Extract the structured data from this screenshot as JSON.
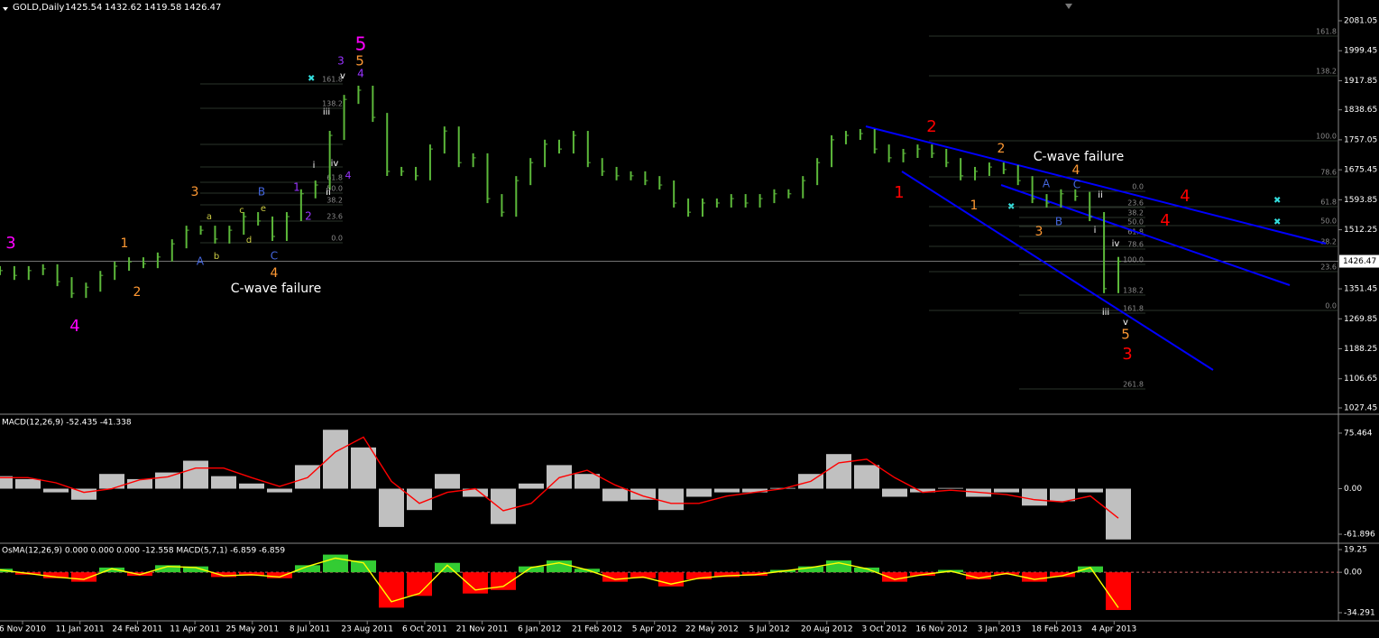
{
  "chart_data": {
    "type": "ohlc",
    "symbol": "GOLD,Daily",
    "ohlc": [
      1425.54,
      1432.62,
      1419.58,
      1426.47
    ],
    "color": "#5cb83a",
    "values": [
      1401,
      1388,
      1401,
      1406,
      1371,
      1339,
      1356,
      1388,
      1413,
      1425,
      1420,
      1438,
      1474,
      1511,
      1511,
      1487,
      1511,
      1548,
      1536,
      1494,
      1548,
      1610,
      1634,
      1769,
      1867,
      1892,
      1818,
      1671,
      1671,
      1659,
      1732,
      1781,
      1695,
      1708,
      1597,
      1560,
      1646,
      1695,
      1745,
      1732,
      1769,
      1695,
      1671,
      1659,
      1659,
      1646,
      1634,
      1585,
      1560,
      1585,
      1585,
      1597,
      1585,
      1597,
      1610,
      1610,
      1646,
      1695,
      1757,
      1769,
      1774,
      1732,
      1708,
      1720,
      1732,
      1720,
      1695,
      1659,
      1671,
      1683,
      1676,
      1646,
      1597,
      1585,
      1610,
      1603,
      1548,
      1352,
      1426
    ],
    "ylim": [
      1012.7,
      2132.6
    ],
    "yticks": [
      2081.05,
      1999.45,
      1917.85,
      1838.65,
      1757.05,
      1675.45,
      1593.85,
      1512.25,
      1351.45,
      1269.85,
      1188.25,
      1106.65,
      1027.45
    ],
    "date_labels": [
      "6 Nov 2010",
      "11 Jan 2011",
      "24 Feb 2011",
      "11 Apr 2011",
      "25 May 2011",
      "8 Jul 2011",
      "23 Aug 2011",
      "6 Oct 2011",
      "21 Nov 2011",
      "6 Jan 2012",
      "21 Feb 2012",
      "5 Apr 2012",
      "22 May 2012",
      "5 Jul 2012",
      "20 Aug 2012",
      "3 Oct 2012",
      "16 Nov 2012",
      "3 Jan 2013",
      "18 Feb 2013",
      "4 Apr 2013"
    ],
    "trendline_color": "#0000ff",
    "annotations": [
      {
        "text": "3",
        "color": "#ff00ff"
      },
      {
        "text": "4",
        "color": "#ff00ff"
      },
      {
        "text": "5",
        "color": "#ff00ff"
      },
      {
        "text": "3",
        "color": "#9933ff"
      },
      {
        "text": "5",
        "color": "#ff9933"
      },
      {
        "text": "4",
        "color": "#9933ff"
      },
      {
        "text": "1",
        "color": "#ff9933"
      },
      {
        "text": "2",
        "color": "#ff9933"
      },
      {
        "text": "3",
        "color": "#ff9933"
      },
      {
        "text": "4",
        "color": "#ff9933"
      },
      {
        "text": "1",
        "color": "#ff9933"
      },
      {
        "text": "2",
        "color": "#ff9933"
      },
      {
        "text": "3",
        "color": "#ff9933"
      },
      {
        "text": "4",
        "color": "#ff9933"
      },
      {
        "text": "5",
        "color": "#ff9933"
      },
      {
        "text": "C-wave failure",
        "color": "#ffffff"
      },
      {
        "text": "C-wave failure",
        "color": "#ffffff"
      },
      {
        "text": "A",
        "color": "#4466dd"
      },
      {
        "text": "B",
        "color": "#4466dd"
      },
      {
        "text": "C",
        "color": "#4466dd"
      },
      {
        "text": "A",
        "color": "#4466dd"
      },
      {
        "text": "B",
        "color": "#4466dd"
      },
      {
        "text": "C",
        "color": "#4466dd"
      },
      {
        "text": "a",
        "color": "#cccc44"
      },
      {
        "text": "b",
        "color": "#cccc44"
      },
      {
        "text": "c",
        "color": "#cccc44"
      },
      {
        "text": "d",
        "color": "#cccc44"
      },
      {
        "text": "e",
        "color": "#cccc44"
      },
      {
        "text": "1",
        "color": "#9933ff"
      },
      {
        "text": "2",
        "color": "#9933ff"
      },
      {
        "text": "4",
        "color": "#9933ff"
      },
      {
        "text": "v",
        "color": "#ffffff"
      },
      {
        "text": "iii",
        "color": "#ffffff"
      },
      {
        "text": "i",
        "color": "#ffffff"
      },
      {
        "text": "iv",
        "color": "#ffffff"
      },
      {
        "text": "ii",
        "color": "#ffffff"
      },
      {
        "text": "ii",
        "color": "#ffffff"
      },
      {
        "text": "i",
        "color": "#ffffff"
      },
      {
        "text": "iv",
        "color": "#ffffff"
      },
      {
        "text": "iii",
        "color": "#ffffff"
      },
      {
        "text": "v",
        "color": "#ffffff"
      },
      {
        "text": "1",
        "color": "#ff0000"
      },
      {
        "text": "2",
        "color": "#ff0000"
      },
      {
        "text": "3",
        "color": "#ff0000"
      },
      {
        "text": "4",
        "color": "#ff0000"
      },
      {
        "text": "4",
        "color": "#ff0000"
      }
    ],
    "fibs": [
      {
        "labels": [
          "161.8",
          "138.2",
          "100.0",
          "78.6",
          "61.8",
          "50.0",
          "38.2",
          "23.6",
          "0.0"
        ]
      },
      {
        "labels": [
          "161.8",
          "138.2",
          "61.8",
          "50.0",
          "38.2",
          "23.6",
          "0.0"
        ]
      },
      {
        "labels": [
          "0.0",
          "23.6",
          "38.2",
          "50.0",
          "61.8",
          "78.6",
          "100.0",
          "138.2",
          "161.8",
          "261.8"
        ]
      }
    ],
    "macd": {
      "type": "histogram",
      "title": "MACD(12,26,9) -52.435 -41.338",
      "color": "#c0c0c0",
      "values": [
        17,
        13,
        -5,
        -15,
        20,
        13,
        22,
        38,
        17,
        7,
        -5,
        32,
        80,
        56,
        -52,
        -29,
        20,
        -11,
        -48,
        7,
        32,
        20,
        -17,
        -15,
        -29,
        -11,
        -5,
        -5,
        1,
        20,
        47,
        32,
        -11,
        -5,
        1,
        -11,
        -5,
        -23,
        -17,
        -5,
        -69
      ],
      "signal": {
        "color": "#ff0000",
        "values": [
          15,
          15,
          8,
          -5,
          0,
          12,
          16,
          28,
          28,
          15,
          3,
          15,
          50,
          70,
          10,
          -20,
          -5,
          0,
          -30,
          -20,
          15,
          25,
          5,
          -10,
          -20,
          -20,
          -10,
          -5,
          0,
          10,
          35,
          40,
          15,
          -5,
          -2,
          -5,
          -8,
          -15,
          -18,
          -10,
          -40
        ]
      },
      "ylim": [
        -71.7,
        97.5
      ],
      "yticks": [
        75.464,
        {
          "value": 0,
          "label": "0.00"
        },
        -61.896
      ]
    },
    "osma": {
      "type": "histogram",
      "title": "OsMA(12,26,9) 0.000 0.000 0.000 -12.558  MACD(5,7,1) -6.859 -6.859",
      "up_color": "#33cc33",
      "down_color": "#ff0000",
      "values": [
        3,
        -2,
        -5,
        -8,
        4,
        -3,
        6,
        5,
        -4,
        -3,
        -5,
        6,
        15,
        10,
        -30,
        -20,
        8,
        -18,
        -15,
        5,
        10,
        3,
        -8,
        -5,
        -12,
        -6,
        -4,
        -3,
        2,
        5,
        10,
        4,
        -8,
        -3,
        2,
        -6,
        -2,
        -8,
        -4,
        5,
        -32
      ],
      "line": {
        "color": "#ffff00",
        "values": [
          2,
          -1,
          -4,
          -6,
          3,
          -2,
          5,
          4,
          -3,
          -2,
          -4,
          5,
          12,
          8,
          -25,
          -18,
          6,
          -15,
          -12,
          4,
          8,
          2,
          -6,
          -4,
          -10,
          -5,
          -3,
          -2,
          1,
          4,
          8,
          3,
          -6,
          -2,
          1,
          -5,
          -1,
          -6,
          -3,
          4,
          -30
        ]
      },
      "ylim": [
        -41.2,
        23.1
      ],
      "yticks": [
        19.25,
        {
          "value": 0,
          "label": "0.00"
        },
        -34.291
      ]
    }
  }
}
